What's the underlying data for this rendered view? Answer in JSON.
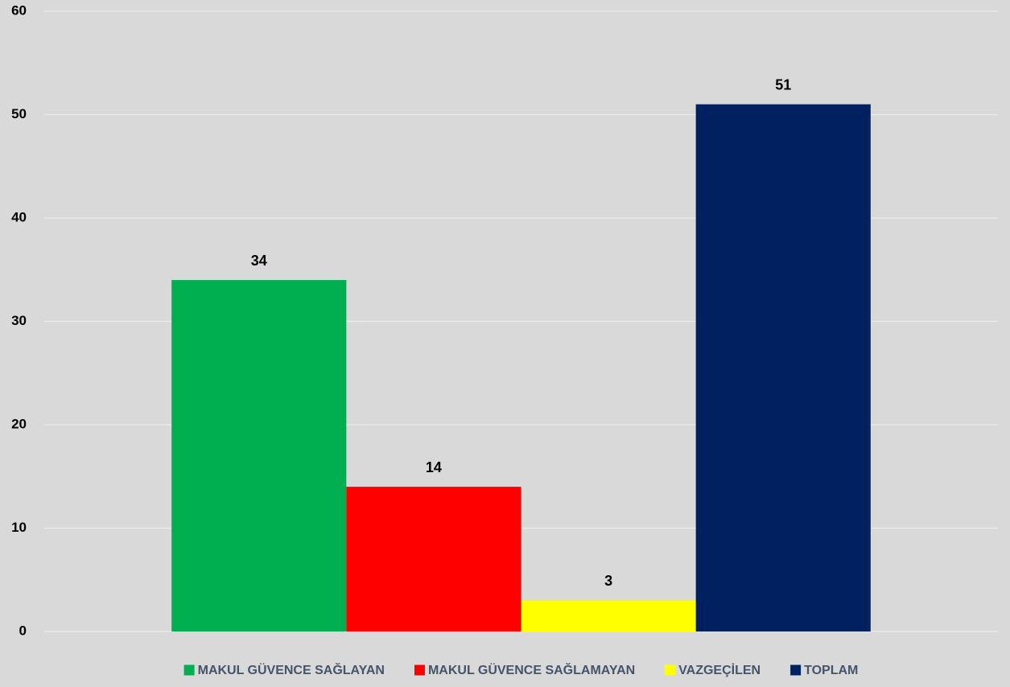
{
  "chart_data": {
    "type": "bar",
    "categories": [
      null
    ],
    "series": [
      {
        "name": "MAKUL GÜVENCE SAĞLAYAN",
        "color": "#00b050",
        "values": [
          34
        ]
      },
      {
        "name": "MAKUL GÜVENCE SAĞLAMAYAN",
        "color": "#ff0000",
        "values": [
          14
        ]
      },
      {
        "name": "VAZGEÇİLEN",
        "color": "#ffff00",
        "values": [
          3
        ]
      },
      {
        "name": "TOPLAM",
        "color": "#002060",
        "values": [
          51
        ]
      }
    ],
    "ylim": [
      0,
      60
    ],
    "yticks": [
      0,
      10,
      20,
      30,
      40,
      50,
      60
    ],
    "grid": true,
    "legend": "bottom"
  }
}
